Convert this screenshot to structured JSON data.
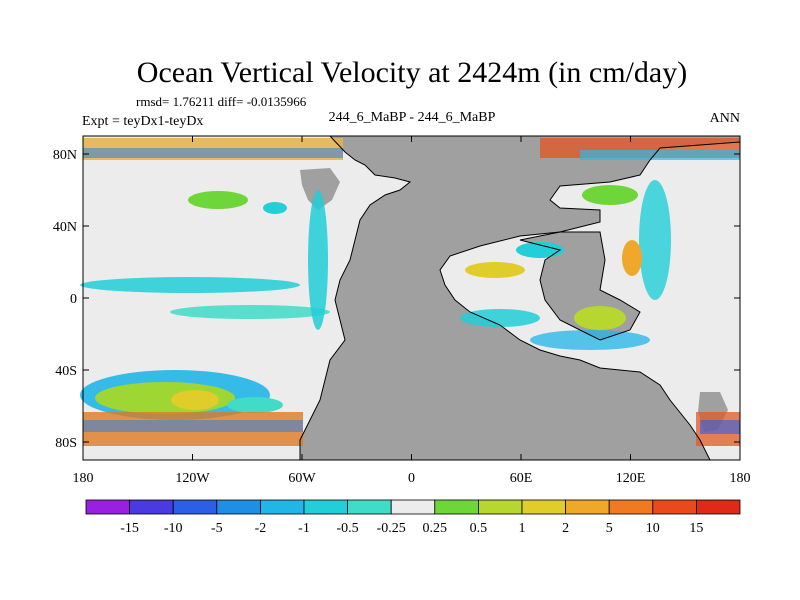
{
  "chart_data": {
    "type": "heatmap",
    "title": "Ocean Vertical Velocity at 2424m (in cm/day)",
    "stats": "rmsd= 1.76211 diff= -0.0135966",
    "experiment": "Expt = teyDx1-teyDx",
    "case_label": "244_6_MaBP - 244_6_MaBP",
    "season": "ANN",
    "x_range": [
      -180,
      180
    ],
    "y_range": [
      -90,
      90
    ],
    "x_ticks": [
      {
        "value": -180,
        "label": "180"
      },
      {
        "value": -120,
        "label": "120W"
      },
      {
        "value": -60,
        "label": "60W"
      },
      {
        "value": 0,
        "label": "0"
      },
      {
        "value": 60,
        "label": "60E"
      },
      {
        "value": 120,
        "label": "120E"
      },
      {
        "value": 180,
        "label": "180"
      }
    ],
    "y_ticks": [
      {
        "value": 80,
        "label": "80N"
      },
      {
        "value": 40,
        "label": "40N"
      },
      {
        "value": 0,
        "label": "0"
      },
      {
        "value": -40,
        "label": "40S"
      },
      {
        "value": -80,
        "label": "80S"
      }
    ],
    "colorbar": {
      "levels": [
        "-15",
        "-10",
        "-5",
        "-2",
        "-1",
        "-0.5",
        "-0.25",
        "0.25",
        "0.5",
        "1",
        "2",
        "5",
        "10",
        "15"
      ],
      "colors": [
        "#9a20e0",
        "#4a3ae0",
        "#2c5fe6",
        "#1f8fe6",
        "#22b6e8",
        "#22ced8",
        "#40dcc8",
        "#ececec",
        "#6fd63a",
        "#b8d630",
        "#e0cc2a",
        "#f0a82a",
        "#f07a22",
        "#e84a1c",
        "#e02a18"
      ]
    },
    "land_color": "#a0a0a0",
    "neutral_color": "#ececec"
  }
}
